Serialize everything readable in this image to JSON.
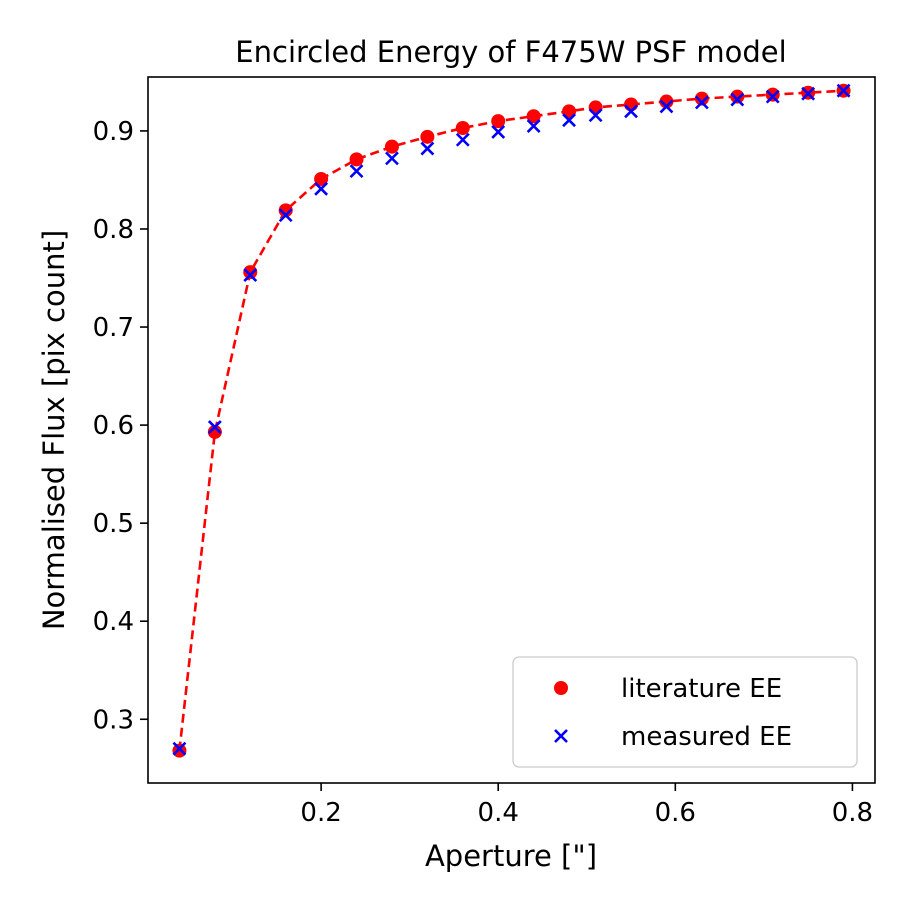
{
  "chart_data": {
    "type": "scatter",
    "title": "Encircled Energy of F475W PSF model",
    "xlabel": "Aperture [\"]",
    "ylabel": "Normalised Flux [pix count]",
    "xlim": [
      0.0045,
      0.8255
    ],
    "ylim": [
      0.235,
      0.955
    ],
    "xticks": [
      0.2,
      0.4,
      0.6,
      0.8
    ],
    "xtick_labels": [
      "0.2",
      "0.4",
      "0.6",
      "0.8"
    ],
    "yticks": [
      0.3,
      0.4,
      0.5,
      0.6,
      0.7,
      0.8,
      0.9
    ],
    "ytick_labels": [
      "0.3",
      "0.4",
      "0.5",
      "0.6",
      "0.7",
      "0.8",
      "0.9"
    ],
    "grid": false,
    "legend_position": "lower-right",
    "series": [
      {
        "name": "literature EE",
        "marker": "circle",
        "line": "dashed",
        "color": "#ff0000",
        "x": [
          0.04,
          0.08,
          0.12,
          0.16,
          0.2,
          0.24,
          0.28,
          0.32,
          0.36,
          0.4,
          0.44,
          0.48,
          0.51,
          0.55,
          0.59,
          0.63,
          0.67,
          0.71,
          0.75,
          0.79
        ],
        "y": [
          0.268,
          0.593,
          0.756,
          0.819,
          0.851,
          0.871,
          0.884,
          0.894,
          0.903,
          0.91,
          0.915,
          0.92,
          0.924,
          0.927,
          0.93,
          0.933,
          0.935,
          0.937,
          0.939,
          0.941
        ]
      },
      {
        "name": "measured EE",
        "marker": "x",
        "color": "#0000ff",
        "x": [
          0.04,
          0.08,
          0.12,
          0.16,
          0.2,
          0.24,
          0.28,
          0.32,
          0.36,
          0.4,
          0.44,
          0.48,
          0.51,
          0.55,
          0.59,
          0.63,
          0.67,
          0.71,
          0.75,
          0.79
        ],
        "y": [
          0.27,
          0.598,
          0.753,
          0.814,
          0.841,
          0.859,
          0.872,
          0.882,
          0.891,
          0.899,
          0.905,
          0.911,
          0.916,
          0.92,
          0.925,
          0.929,
          0.932,
          0.935,
          0.938,
          0.941
        ]
      }
    ]
  }
}
